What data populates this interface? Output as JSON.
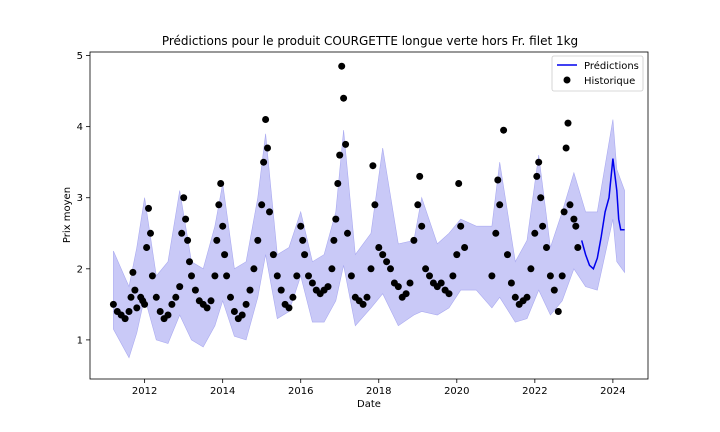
{
  "chart_data": {
    "type": "line",
    "title": "Prédictions pour le produit COURGETTE longue verte hors Fr. filet 1kg",
    "xlabel": "Date",
    "ylabel": "Prix moyen",
    "xlim": [
      2010.6,
      2024.9
    ],
    "ylim": [
      0.45,
      5.05
    ],
    "xticks": [
      {
        "value": 2012,
        "label": "2012"
      },
      {
        "value": 2014,
        "label": "2014"
      },
      {
        "value": 2016,
        "label": "2016"
      },
      {
        "value": 2018,
        "label": "2018"
      },
      {
        "value": 2020,
        "label": "2020"
      },
      {
        "value": 2022,
        "label": "2022"
      },
      {
        "value": 2024,
        "label": "2024"
      }
    ],
    "yticks": [
      {
        "value": 1,
        "label": "1"
      },
      {
        "value": 2,
        "label": "2"
      },
      {
        "value": 3,
        "label": "3"
      },
      {
        "value": 4,
        "label": "4"
      },
      {
        "value": 5,
        "label": "5"
      }
    ],
    "grid": false,
    "legend": {
      "position": "top-right",
      "entries": [
        "Prédictions",
        "Historique"
      ]
    },
    "colors": {
      "prediction": "#0000ee",
      "interval": "#c9c9f7",
      "interval_edge": "#aaaaf0",
      "history": "#000000"
    },
    "series": [
      {
        "name": "Prédictions",
        "kind": "line",
        "x": [
          2023.2,
          2023.3,
          2023.4,
          2023.5,
          2023.6,
          2023.7,
          2023.8,
          2023.9,
          2024.0,
          2024.1,
          2024.15,
          2024.2,
          2024.3
        ],
        "y": [
          2.4,
          2.2,
          2.05,
          2.0,
          2.15,
          2.45,
          2.8,
          3.0,
          3.55,
          3.1,
          2.7,
          2.55,
          2.55
        ]
      },
      {
        "name": "Intervalle",
        "kind": "band",
        "x": [
          2011.2,
          2011.6,
          2011.8,
          2012.0,
          2012.3,
          2012.6,
          2012.9,
          2013.2,
          2013.5,
          2013.8,
          2014.0,
          2014.3,
          2014.6,
          2014.9,
          2015.1,
          2015.4,
          2015.7,
          2016.0,
          2016.3,
          2016.6,
          2016.9,
          2017.1,
          2017.4,
          2017.8,
          2018.1,
          2018.5,
          2018.9,
          2019.1,
          2019.5,
          2019.8,
          2020.1,
          2020.5,
          2020.9,
          2021.1,
          2021.5,
          2021.8,
          2022.1,
          2022.4,
          2022.7,
          2023.0,
          2023.3,
          2023.6,
          2024.0,
          2024.1,
          2024.3
        ],
        "lower": [
          1.15,
          0.75,
          1.1,
          1.6,
          1.0,
          0.95,
          1.35,
          1.0,
          0.9,
          1.2,
          1.55,
          1.05,
          1.0,
          1.6,
          2.2,
          1.3,
          1.4,
          1.9,
          1.25,
          1.25,
          1.55,
          2.05,
          1.2,
          1.45,
          1.65,
          1.2,
          1.35,
          1.4,
          1.35,
          1.45,
          1.7,
          1.7,
          1.45,
          1.6,
          1.25,
          1.3,
          1.7,
          1.35,
          1.55,
          2.0,
          1.75,
          1.7,
          2.7,
          2.1,
          1.95
        ],
        "upper": [
          2.25,
          1.75,
          2.3,
          3.0,
          1.9,
          2.1,
          3.1,
          2.1,
          2.0,
          2.6,
          3.2,
          2.0,
          2.1,
          3.0,
          3.9,
          2.2,
          2.3,
          2.8,
          2.1,
          2.2,
          2.8,
          3.95,
          2.2,
          2.5,
          3.7,
          2.35,
          2.4,
          3.0,
          2.35,
          2.5,
          2.7,
          2.6,
          2.6,
          3.5,
          2.1,
          2.4,
          3.6,
          2.3,
          2.8,
          3.35,
          2.8,
          2.8,
          4.1,
          3.4,
          3.1
        ]
      },
      {
        "name": "Historique",
        "kind": "scatter",
        "x": [
          2011.2,
          2011.3,
          2011.4,
          2011.5,
          2011.6,
          2011.65,
          2011.7,
          2011.75,
          2011.8,
          2011.9,
          2011.95,
          2012.0,
          2012.05,
          2012.1,
          2012.15,
          2012.2,
          2012.3,
          2012.4,
          2012.5,
          2012.6,
          2012.7,
          2012.8,
          2012.9,
          2012.95,
          2013.0,
          2013.05,
          2013.1,
          2013.15,
          2013.2,
          2013.3,
          2013.4,
          2013.5,
          2013.6,
          2013.7,
          2013.8,
          2013.85,
          2013.9,
          2013.95,
          2014.0,
          2014.05,
          2014.1,
          2014.2,
          2014.3,
          2014.4,
          2014.5,
          2014.6,
          2014.7,
          2014.8,
          2014.9,
          2015.0,
          2015.05,
          2015.1,
          2015.15,
          2015.2,
          2015.3,
          2015.4,
          2015.5,
          2015.6,
          2015.7,
          2015.8,
          2015.9,
          2016.0,
          2016.05,
          2016.1,
          2016.2,
          2016.3,
          2016.4,
          2016.5,
          2016.6,
          2016.7,
          2016.8,
          2016.85,
          2016.9,
          2016.95,
          2017.0,
          2017.05,
          2017.1,
          2017.15,
          2017.2,
          2017.3,
          2017.4,
          2017.5,
          2017.6,
          2017.7,
          2017.8,
          2017.85,
          2017.9,
          2018.0,
          2018.1,
          2018.2,
          2018.3,
          2018.4,
          2018.5,
          2018.6,
          2018.7,
          2018.8,
          2018.9,
          2019.0,
          2019.05,
          2019.1,
          2019.2,
          2019.3,
          2019.4,
          2019.5,
          2019.6,
          2019.7,
          2019.8,
          2019.9,
          2020.0,
          2020.05,
          2020.1,
          2020.2,
          2020.9,
          2021.0,
          2021.05,
          2021.1,
          2021.2,
          2021.3,
          2021.4,
          2021.5,
          2021.6,
          2021.7,
          2021.8,
          2021.9,
          2022.0,
          2022.05,
          2022.1,
          2022.15,
          2022.2,
          2022.3,
          2022.4,
          2022.5,
          2022.6,
          2022.7,
          2022.75,
          2022.8,
          2022.85,
          2022.9,
          2023.0,
          2023.05,
          2023.1
        ],
        "y": [
          1.5,
          1.4,
          1.35,
          1.3,
          1.4,
          1.6,
          1.95,
          1.7,
          1.45,
          1.6,
          1.55,
          1.5,
          2.3,
          2.85,
          2.5,
          1.9,
          1.6,
          1.4,
          1.3,
          1.35,
          1.5,
          1.6,
          1.75,
          2.5,
          3.0,
          2.7,
          2.4,
          2.1,
          1.9,
          1.7,
          1.55,
          1.5,
          1.45,
          1.55,
          1.9,
          2.4,
          2.9,
          3.2,
          2.6,
          2.2,
          1.9,
          1.6,
          1.4,
          1.3,
          1.35,
          1.5,
          1.7,
          2.0,
          2.4,
          2.9,
          3.5,
          4.1,
          3.7,
          2.8,
          2.2,
          1.9,
          1.7,
          1.5,
          1.45,
          1.6,
          1.9,
          2.6,
          2.4,
          2.2,
          1.9,
          1.8,
          1.7,
          1.65,
          1.7,
          1.75,
          2.0,
          2.4,
          2.7,
          3.2,
          3.6,
          4.85,
          4.4,
          3.75,
          2.5,
          1.9,
          1.6,
          1.55,
          1.5,
          1.6,
          2.0,
          3.45,
          2.9,
          2.3,
          2.2,
          2.1,
          2.0,
          1.8,
          1.75,
          1.6,
          1.65,
          1.8,
          2.4,
          2.9,
          3.3,
          2.6,
          2.0,
          1.9,
          1.8,
          1.75,
          1.8,
          1.7,
          1.65,
          1.9,
          2.2,
          3.2,
          2.6,
          2.3,
          1.9,
          2.5,
          3.25,
          2.9,
          3.95,
          2.2,
          1.8,
          1.6,
          1.5,
          1.55,
          1.6,
          2.0,
          2.5,
          3.3,
          3.5,
          3.0,
          2.6,
          2.3,
          1.9,
          1.7,
          1.4,
          1.9,
          2.8,
          3.7,
          4.05,
          2.9,
          2.7,
          2.6,
          2.3
        ]
      }
    ]
  }
}
